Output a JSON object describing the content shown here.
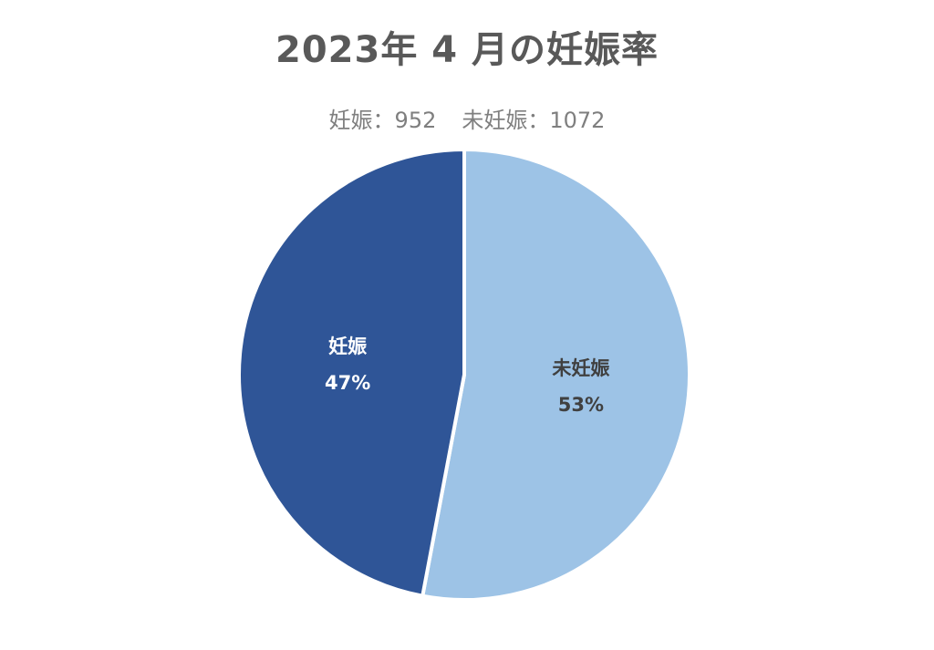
{
  "chart_data": {
    "type": "pie",
    "title": "2023年 4 月の妊娠率",
    "subtitle": {
      "pregnant_label": "妊娠",
      "pregnant_count": "952",
      "not_pregnant_label": "未妊娠",
      "not_pregnant_count": "1072",
      "separator": "："
    },
    "slices": [
      {
        "label": "妊娠",
        "value": 952,
        "percent_label": "47%",
        "color": "#2f5597",
        "text_color": "#ffffff"
      },
      {
        "label": "未妊娠",
        "value": 1072,
        "percent_label": "53%",
        "color": "#9dc3e6",
        "text_color": "#404040"
      }
    ],
    "legend": "none"
  }
}
